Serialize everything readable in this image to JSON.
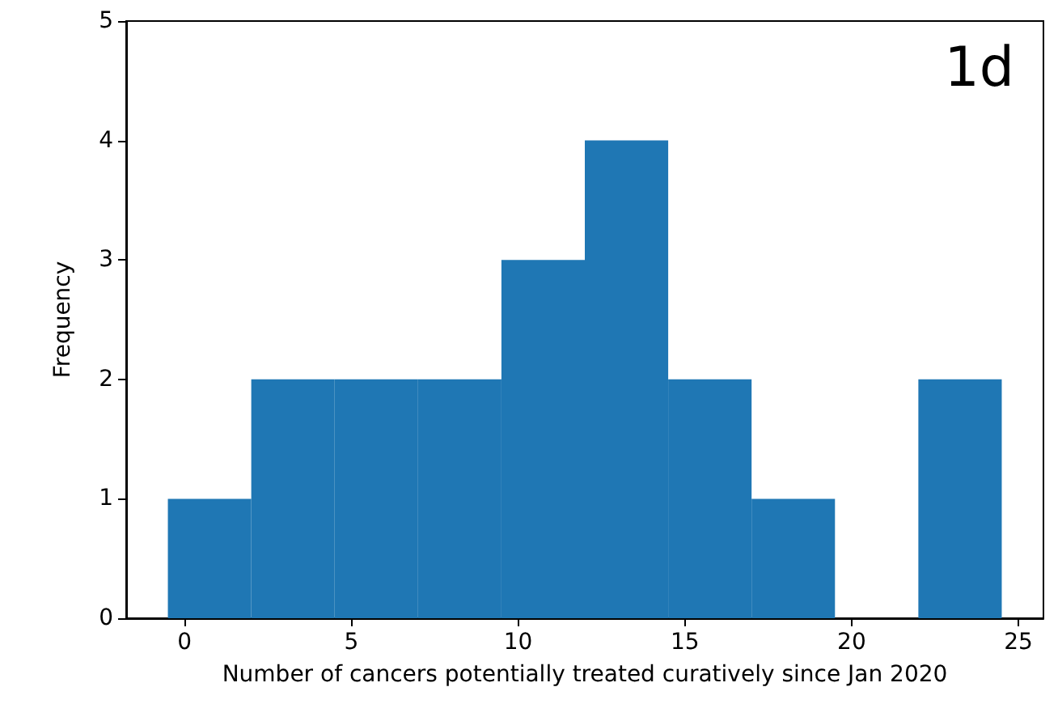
{
  "chart_data": {
    "type": "histogram",
    "xlabel": "Number of cancers potentially treated curatively since Jan 2020",
    "ylabel": "Frequency",
    "bins": [
      -0.5,
      2,
      4.5,
      7,
      9.5,
      12,
      14.5,
      17,
      19.5,
      22,
      24.5
    ],
    "values": [
      1,
      2,
      2,
      2,
      3,
      4,
      2,
      1,
      0,
      2
    ],
    "color": "#1f77b4",
    "xlim": [
      -1.75,
      25.75
    ],
    "xticks": [
      0,
      5,
      10,
      15,
      20,
      25
    ],
    "ylim": [
      0,
      5
    ],
    "yticks": [
      0,
      1,
      2,
      3,
      4,
      5
    ],
    "grid": false,
    "annotations": [
      "1d"
    ]
  }
}
